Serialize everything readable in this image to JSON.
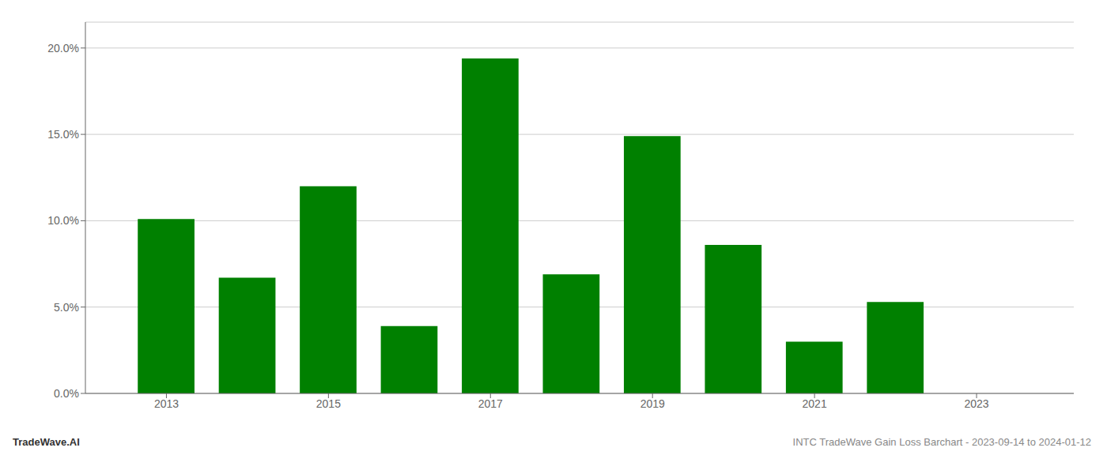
{
  "chart_data": {
    "type": "bar",
    "x": [
      2013,
      2014,
      2015,
      2016,
      2017,
      2018,
      2019,
      2020,
      2021,
      2022,
      2023
    ],
    "values": [
      0.101,
      0.067,
      0.12,
      0.039,
      0.194,
      0.069,
      0.149,
      0.086,
      0.03,
      0.053,
      0.0
    ],
    "color": "#008000",
    "xlim": [
      2012.0,
      2024.2
    ],
    "xticks": [
      2013,
      2015,
      2017,
      2019,
      2021,
      2023
    ],
    "ylim": [
      0.0,
      0.215
    ],
    "yticks": [
      {
        "value": 0.0,
        "label": "0.0%"
      },
      {
        "value": 0.05,
        "label": "5.0%"
      },
      {
        "value": 0.1,
        "label": "10.0%"
      },
      {
        "value": 0.15,
        "label": "15.0%"
      },
      {
        "value": 0.2,
        "label": "20.0%"
      }
    ],
    "grid": true,
    "annotations": [
      "TradeWave.AI",
      "INTC TradeWave Gain Loss Barchart - 2023-09-14 to 2024-01-12"
    ]
  }
}
